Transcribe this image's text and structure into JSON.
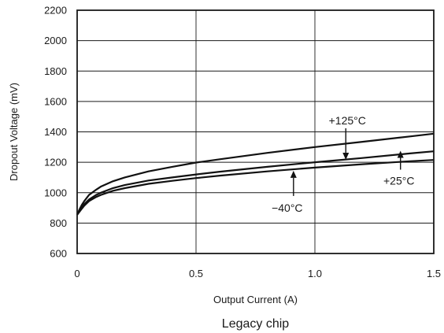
{
  "chart_data": {
    "type": "line",
    "caption": "Legacy chip",
    "xlabel": "Output Current (A)",
    "ylabel": "Dropout Voltage (mV)",
    "xlim": [
      0,
      1.5
    ],
    "ylim": [
      600,
      2200
    ],
    "x_ticks": [
      0,
      0.5,
      1.0,
      1.5
    ],
    "x_tick_labels": [
      "0",
      "0.5",
      "1.0",
      "1.5"
    ],
    "y_ticks": [
      600,
      800,
      1000,
      1200,
      1400,
      1600,
      1800,
      2000,
      2200
    ],
    "y_tick_labels": [
      "600",
      "800",
      "1000",
      "1200",
      "1400",
      "1600",
      "1800",
      "2000",
      "2200"
    ],
    "grid": true,
    "series": [
      {
        "name": "+125°C",
        "x": [
          0,
          0.01,
          0.02,
          0.03,
          0.05,
          0.08,
          0.1,
          0.15,
          0.2,
          0.3,
          0.4,
          0.5,
          0.6,
          0.8,
          1.0,
          1.2,
          1.4,
          1.5
        ],
        "y": [
          855,
          890,
          920,
          945,
          985,
          1020,
          1040,
          1075,
          1100,
          1140,
          1170,
          1198,
          1220,
          1262,
          1300,
          1335,
          1370,
          1388
        ]
      },
      {
        "name": "+25°C",
        "x": [
          0,
          0.01,
          0.02,
          0.03,
          0.05,
          0.08,
          0.1,
          0.15,
          0.2,
          0.3,
          0.4,
          0.5,
          0.6,
          0.8,
          1.0,
          1.2,
          1.4,
          1.5
        ],
        "y": [
          855,
          880,
          905,
          925,
          955,
          985,
          1000,
          1030,
          1050,
          1080,
          1100,
          1120,
          1138,
          1170,
          1200,
          1228,
          1258,
          1272
        ]
      },
      {
        "name": "−40°C",
        "x": [
          0,
          0.01,
          0.02,
          0.03,
          0.05,
          0.08,
          0.1,
          0.15,
          0.2,
          0.3,
          0.4,
          0.5,
          0.6,
          0.8,
          1.0,
          1.2,
          1.4,
          1.5
        ],
        "y": [
          855,
          875,
          895,
          915,
          945,
          972,
          985,
          1012,
          1030,
          1058,
          1078,
          1096,
          1112,
          1140,
          1165,
          1187,
          1207,
          1215
        ]
      }
    ],
    "annotations": [
      {
        "text": "+125°C",
        "series": "+125°C",
        "x": 1.13,
        "y": 1320
      },
      {
        "text": "+25°C",
        "series": "+25°C",
        "x": 1.36,
        "y": 1255
      },
      {
        "text": "−40°C",
        "series": "−40°C",
        "x": 0.91,
        "y": 1170
      }
    ]
  }
}
